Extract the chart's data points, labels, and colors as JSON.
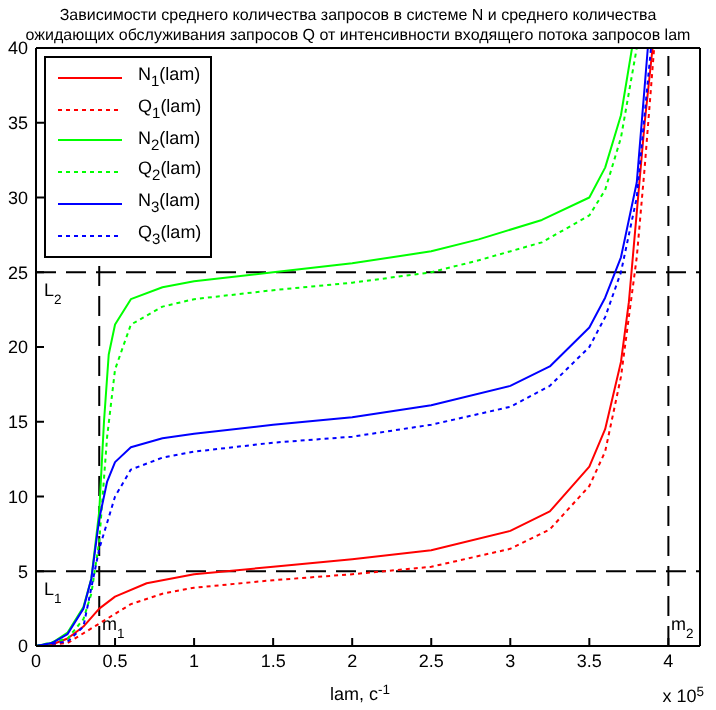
{
  "chart_data": {
    "type": "line",
    "title": "Зависимости среднего количества запросов в системе N и среднего количества\nожидающих обслуживания запросов Q от интенсивности входящего потока запросов lam",
    "xlabel": "lam, c$^{-1}$",
    "annotations": [
      "x 10$^{5}$"
    ],
    "xlim": [
      0,
      4.2
    ],
    "xticks": [
      0,
      0.5,
      1,
      1.5,
      2,
      2.5,
      3,
      3.5,
      4
    ],
    "ylim": [
      0,
      40
    ],
    "yticks": [
      0,
      5,
      10,
      15,
      20,
      25,
      30,
      35,
      40
    ],
    "grid": false,
    "legend": "top left",
    "marker": "none",
    "ref_lines": [
      {
        "axis": "y",
        "value": 5,
        "label": "L$_{1}$",
        "color": "#000000",
        "line_style": "dashed"
      },
      {
        "axis": "y",
        "value": 25,
        "label": "L$_{2}$",
        "color": "#000000",
        "line_style": "dashed"
      },
      {
        "axis": "x",
        "value": 0.4,
        "label": "m$_{1}$",
        "color": "#000000",
        "line_style": "dashed"
      },
      {
        "axis": "x",
        "value": 4,
        "label": "m$_{2}$",
        "color": "#000000",
        "line_style": "dashed"
      }
    ],
    "series": [
      {
        "name": "N$_{1}$(lam)",
        "color": "#ff0000",
        "line_style": "solid",
        "x": [
          0,
          0.1,
          0.2,
          0.3,
          0.4,
          0.5,
          0.7,
          1,
          1.5,
          2,
          2.5,
          3,
          3.25,
          3.5,
          3.6,
          3.7,
          3.75,
          3.8,
          3.85,
          3.9
        ],
        "values": [
          0,
          0.1,
          0.5,
          1.3,
          2.5,
          3.3,
          4.2,
          4.8,
          5.3,
          5.8,
          6.4,
          7.7,
          9,
          12,
          14.5,
          19,
          23,
          29,
          35,
          40
        ]
      },
      {
        "name": "Q$_{1}$(lam)",
        "color": "#ff0000",
        "line_style": "dotted",
        "x": [
          0,
          0.2,
          0.4,
          0.6,
          0.8,
          1,
          1.5,
          2,
          2.5,
          3,
          3.25,
          3.5,
          3.6,
          3.7,
          3.8,
          3.85,
          3.91
        ],
        "values": [
          0,
          0.2,
          1.5,
          2.8,
          3.5,
          3.9,
          4.4,
          4.8,
          5.3,
          6.5,
          7.8,
          10.7,
          13,
          18,
          26,
          32,
          40
        ]
      },
      {
        "name": "N$_{2}$(lam)",
        "color": "#00ff00",
        "line_style": "solid",
        "x": [
          0,
          0.1,
          0.2,
          0.3,
          0.35,
          0.4,
          0.43,
          0.46,
          0.5,
          0.6,
          0.8,
          1,
          1.5,
          2,
          2.5,
          2.8,
          3.2,
          3.5,
          3.6,
          3.7,
          3.77
        ],
        "values": [
          0,
          0.2,
          0.9,
          2.6,
          4.5,
          9,
          15,
          19.5,
          21.5,
          23.2,
          24,
          24.4,
          25,
          25.6,
          26.4,
          27.2,
          28.5,
          30,
          32,
          35.5,
          40
        ]
      },
      {
        "name": "Q$_{2}$(lam)",
        "color": "#00ff00",
        "line_style": "dotted",
        "x": [
          0,
          0.2,
          0.3,
          0.35,
          0.4,
          0.45,
          0.5,
          0.6,
          0.8,
          1,
          1.5,
          2,
          2.5,
          2.8,
          3.2,
          3.5,
          3.6,
          3.7,
          3.8
        ],
        "values": [
          0,
          0.5,
          1.8,
          3.5,
          7,
          14,
          18.5,
          21.5,
          22.7,
          23.2,
          23.8,
          24.3,
          25,
          25.8,
          27,
          28.8,
          30.5,
          34,
          40
        ]
      },
      {
        "name": "N$_{3}$(lam)",
        "color": "#0000ff",
        "line_style": "solid",
        "x": [
          0,
          0.1,
          0.2,
          0.3,
          0.35,
          0.4,
          0.45,
          0.5,
          0.6,
          0.8,
          1,
          1.5,
          2,
          2.5,
          3,
          3.25,
          3.5,
          3.6,
          3.7,
          3.8,
          3.87
        ],
        "values": [
          0,
          0.2,
          0.8,
          2.5,
          4.5,
          8.5,
          11,
          12.3,
          13.3,
          13.9,
          14.2,
          14.8,
          15.3,
          16.1,
          17.4,
          18.7,
          21.3,
          23.3,
          26,
          31,
          40
        ]
      },
      {
        "name": "Q$_{3}$(lam)",
        "color": "#0000ff",
        "line_style": "dotted",
        "x": [
          0,
          0.2,
          0.3,
          0.4,
          0.5,
          0.6,
          0.8,
          1,
          1.5,
          2,
          2.5,
          3,
          3.25,
          3.5,
          3.6,
          3.7,
          3.8,
          3.89
        ],
        "values": [
          0,
          0.3,
          1.3,
          6.5,
          10,
          11.8,
          12.6,
          13,
          13.6,
          14,
          14.8,
          16,
          17.4,
          20,
          22,
          25,
          30,
          40
        ]
      }
    ]
  }
}
